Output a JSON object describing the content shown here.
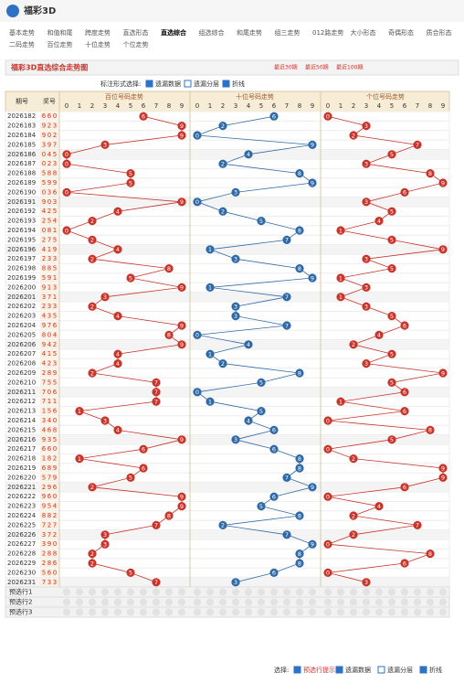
{
  "header": {
    "logo": "福彩3D"
  },
  "nav": [
    "基本走势",
    "和值和尾",
    "跨度走势",
    "直选形态",
    "直选综合",
    "组选综合",
    "和尾走势",
    "组三走势",
    "012路走势",
    "大小形态",
    "奇偶形态",
    "质合形态",
    "二码走势",
    "百位走势",
    "十位走势",
    "个位走势"
  ],
  "active_nav": 4,
  "page_title": "福彩3D直选综合走势图",
  "range_links": [
    "最近30期",
    "最近50期",
    "最近100期"
  ],
  "controls": {
    "label": "标注形式选择:",
    "options": [
      "遗漏数据",
      "遗漏分层",
      "折线"
    ]
  },
  "table": {
    "period_header": "期号",
    "number_header": "奖号",
    "digit_header": [
      0,
      1,
      2,
      3,
      4,
      5,
      6,
      7,
      8,
      9
    ],
    "groups": [
      {
        "name": "百位号码走势",
        "color": "#c8352b"
      },
      {
        "name": "十位号码走势",
        "color": "#2f6aa8"
      },
      {
        "name": "个位号码走势",
        "color": "#c8352b"
      }
    ],
    "rows": [
      {
        "period": "2026182",
        "digits": [
          6,
          6,
          0
        ]
      },
      {
        "period": "2026183",
        "digits": [
          9,
          2,
          3
        ]
      },
      {
        "period": "2026184",
        "digits": [
          9,
          0,
          2
        ]
      },
      {
        "period": "2026185",
        "digits": [
          3,
          9,
          7
        ]
      },
      {
        "period": "2026186",
        "digits": [
          0,
          4,
          5
        ]
      },
      {
        "period": "2026187",
        "digits": [
          0,
          2,
          3
        ]
      },
      {
        "period": "2026188",
        "digits": [
          5,
          8,
          8
        ]
      },
      {
        "period": "2026189",
        "digits": [
          5,
          9,
          9
        ]
      },
      {
        "period": "2026190",
        "digits": [
          0,
          3,
          6
        ]
      },
      {
        "period": "2026191",
        "digits": [
          9,
          0,
          3
        ]
      },
      {
        "period": "2026192",
        "digits": [
          4,
          2,
          5
        ]
      },
      {
        "period": "2026193",
        "digits": [
          2,
          5,
          4
        ]
      },
      {
        "period": "2026194",
        "digits": [
          0,
          8,
          1
        ]
      },
      {
        "period": "2026195",
        "digits": [
          2,
          7,
          5
        ]
      },
      {
        "period": "2026196",
        "digits": [
          4,
          1,
          9
        ]
      },
      {
        "period": "2026197",
        "digits": [
          2,
          3,
          3
        ]
      },
      {
        "period": "2026198",
        "digits": [
          8,
          8,
          5
        ]
      },
      {
        "period": "2026199",
        "digits": [
          5,
          9,
          1
        ]
      },
      {
        "period": "2026200",
        "digits": [
          9,
          1,
          3
        ]
      },
      {
        "period": "2026201",
        "digits": [
          3,
          7,
          1
        ]
      },
      {
        "period": "2026202",
        "digits": [
          2,
          3,
          3
        ]
      },
      {
        "period": "2026203",
        "digits": [
          4,
          3,
          5
        ]
      },
      {
        "period": "2026204",
        "digits": [
          9,
          7,
          6
        ]
      },
      {
        "period": "2026205",
        "digits": [
          8,
          0,
          4
        ]
      },
      {
        "period": "2026206",
        "digits": [
          9,
          4,
          2
        ]
      },
      {
        "period": "2026207",
        "digits": [
          4,
          1,
          5
        ]
      },
      {
        "period": "2026208",
        "digits": [
          4,
          2,
          3
        ]
      },
      {
        "period": "2026209",
        "digits": [
          2,
          8,
          9
        ]
      },
      {
        "period": "2026210",
        "digits": [
          7,
          5,
          5
        ]
      },
      {
        "period": "2026211",
        "digits": [
          7,
          0,
          6
        ]
      },
      {
        "period": "2026212",
        "digits": [
          7,
          1,
          1
        ]
      },
      {
        "period": "2026213",
        "digits": [
          1,
          5,
          6
        ]
      },
      {
        "period": "2026214",
        "digits": [
          3,
          4,
          0
        ]
      },
      {
        "period": "2026215",
        "digits": [
          4,
          6,
          8
        ]
      },
      {
        "period": "2026216",
        "digits": [
          9,
          3,
          5
        ]
      },
      {
        "period": "2026217",
        "digits": [
          6,
          6,
          0
        ]
      },
      {
        "period": "2026218",
        "digits": [
          1,
          8,
          2
        ]
      },
      {
        "period": "2026219",
        "digits": [
          6,
          8,
          9
        ]
      },
      {
        "period": "2026220",
        "digits": [
          5,
          7,
          9
        ]
      },
      {
        "period": "2026221",
        "digits": [
          2,
          9,
          6
        ]
      },
      {
        "period": "2026222",
        "digits": [
          9,
          6,
          0
        ]
      },
      {
        "period": "2026223",
        "digits": [
          9,
          5,
          4
        ]
      },
      {
        "period": "2026224",
        "digits": [
          8,
          8,
          2
        ]
      },
      {
        "period": "2026225",
        "digits": [
          7,
          2,
          7
        ]
      },
      {
        "period": "2026226",
        "digits": [
          3,
          7,
          2
        ]
      },
      {
        "period": "2026227",
        "digits": [
          3,
          9,
          0
        ]
      },
      {
        "period": "2026228",
        "digits": [
          2,
          8,
          8
        ]
      },
      {
        "period": "2026229",
        "digits": [
          2,
          8,
          6
        ]
      },
      {
        "period": "2026230",
        "digits": [
          5,
          6,
          0
        ]
      },
      {
        "period": "2026231",
        "digits": [
          7,
          3,
          3
        ]
      }
    ],
    "preselect_rows": [
      "预选行1",
      "预选行2",
      "预选行3"
    ]
  },
  "legend": {
    "label": "选择:",
    "options": [
      "预选行提示",
      "遗漏数据",
      "遗漏分层",
      "折线"
    ]
  }
}
